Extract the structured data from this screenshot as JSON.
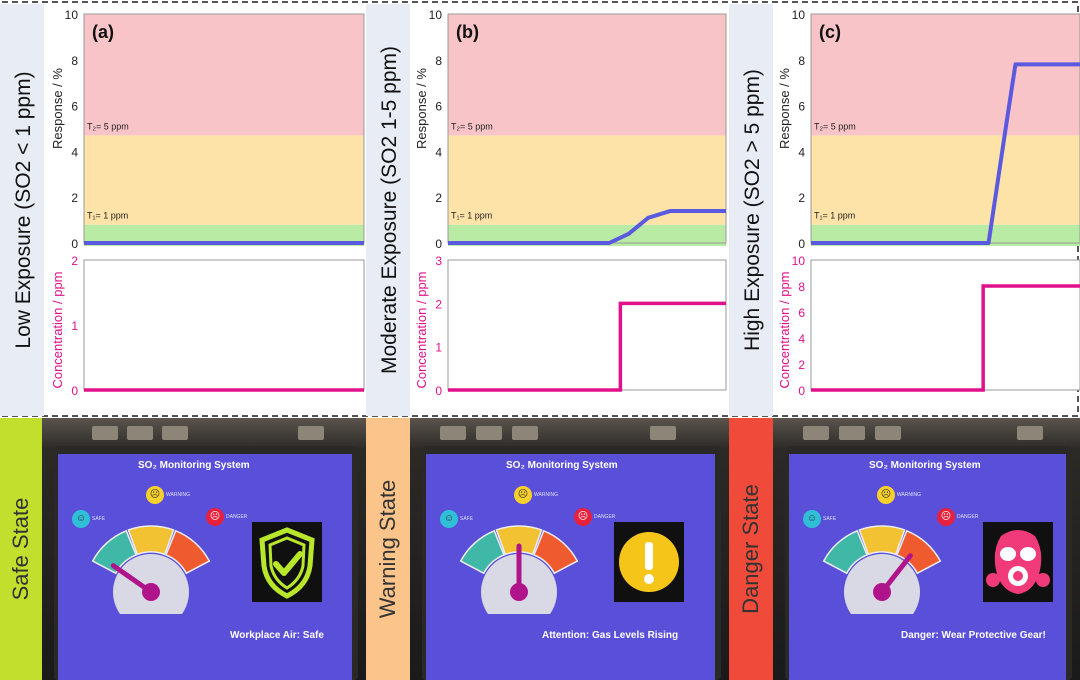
{
  "chart_data": [
    {
      "type": "line",
      "panel_label": "(a)",
      "row_label_main": "Low Exposure",
      "row_label_detail": "(SO2 < 1 ppm)",
      "response": {
        "ylabel": "Response / %",
        "ylim": [
          0,
          10
        ],
        "yticks": [
          0,
          2,
          4,
          6,
          8,
          10
        ],
        "thresholds": [
          {
            "label": "T₁= 1 ppm",
            "y": 0.8
          },
          {
            "label": "T₂= 5 ppm",
            "y": 4.7
          }
        ],
        "series": [
          {
            "x": [
              0,
              1
            ],
            "y": [
              0,
              0
            ]
          }
        ]
      },
      "concentration": {
        "ylabel": "Concentration / ppm",
        "ylim": [
          0,
          2
        ],
        "yticks": [
          0,
          1,
          2
        ],
        "series": [
          {
            "x": [
              0,
              1
            ],
            "y": [
              0,
              0
            ]
          }
        ]
      }
    },
    {
      "type": "line",
      "panel_label": "(b)",
      "row_label_main": "Moderate Exposure",
      "row_label_detail": "(SO2 1-5 ppm)",
      "response": {
        "ylabel": "Response / %",
        "ylim": [
          0,
          10
        ],
        "yticks": [
          0,
          2,
          4,
          6,
          8,
          10
        ],
        "thresholds": [
          {
            "label": "T₁= 1 ppm",
            "y": 0.8
          },
          {
            "label": "T₂= 5 ppm",
            "y": 4.7
          }
        ],
        "series": [
          {
            "x": [
              0,
              0.58,
              0.65,
              0.72,
              0.8,
              1
            ],
            "y": [
              0,
              0,
              0.4,
              1.1,
              1.4,
              1.4
            ]
          }
        ]
      },
      "concentration": {
        "ylabel": "Concentration / ppm",
        "ylim": [
          0,
          3
        ],
        "yticks": [
          0,
          1,
          2,
          3
        ],
        "series": [
          {
            "x": [
              0,
              0.62,
              0.62,
              1
            ],
            "y": [
              0,
              0,
              2,
              2
            ]
          }
        ]
      }
    },
    {
      "type": "line",
      "panel_label": "(c)",
      "row_label_main": "High Exposure",
      "row_label_detail": "(SO2 > 5 ppm)",
      "response": {
        "ylabel": "Response / %",
        "ylim": [
          0,
          10
        ],
        "yticks": [
          0,
          2,
          4,
          6,
          8,
          10
        ],
        "thresholds": [
          {
            "label": "T₁= 1 ppm",
            "y": 0.8
          },
          {
            "label": "T₂= 5 ppm",
            "y": 4.7
          }
        ],
        "series": [
          {
            "x": [
              0,
              0.66,
              0.73,
              0.76,
              1
            ],
            "y": [
              0,
              0,
              5.5,
              7.8,
              7.8
            ]
          }
        ]
      },
      "concentration": {
        "ylabel": "Concentration / ppm",
        "ylim": [
          0,
          10
        ],
        "yticks": [
          0,
          2,
          4,
          6,
          8,
          10
        ],
        "series": [
          {
            "x": [
              0,
              0.64,
              0.64,
              1
            ],
            "y": [
              0,
              0,
              8,
              8
            ]
          }
        ]
      }
    }
  ],
  "colors": {
    "safe_zone": "#b9eba4",
    "warning_zone": "#fde3a8",
    "danger_zone": "#f9c4c8",
    "response_line": "#5b59e0",
    "concentration_line": "#e0118a",
    "concentration_axis": "#e0118a",
    "safe": "#c2df2e",
    "warning": "#fbc48a",
    "danger": "#f04a3a",
    "screen": "#5a4fd8"
  },
  "devices": [
    {
      "state_label": "Safe State",
      "screen_title": "SO₂ Monitoring System",
      "message": "Workplace Air: Safe",
      "status_icon": "shield-check-icon",
      "needle_angle": -55,
      "legend": {
        "safe": "SAFE",
        "warning": "WARNING",
        "danger": "DANGER"
      }
    },
    {
      "state_label": "Warning  State",
      "screen_title": "SO₂ Monitoring System",
      "message": "Attention: Gas Levels Rising",
      "status_icon": "exclamation-icon",
      "needle_angle": 0,
      "legend": {
        "safe": "SAFE",
        "warning": "WARNING",
        "danger": "DANGER"
      }
    },
    {
      "state_label": "Danger State",
      "screen_title": "SO₂ Monitoring System",
      "message": "Danger: Wear Protective Gear!",
      "status_icon": "gas-mask-icon",
      "needle_angle": 38,
      "legend": {
        "safe": "SAFE",
        "warning": "WARNING",
        "danger": "DANGER"
      }
    }
  ]
}
